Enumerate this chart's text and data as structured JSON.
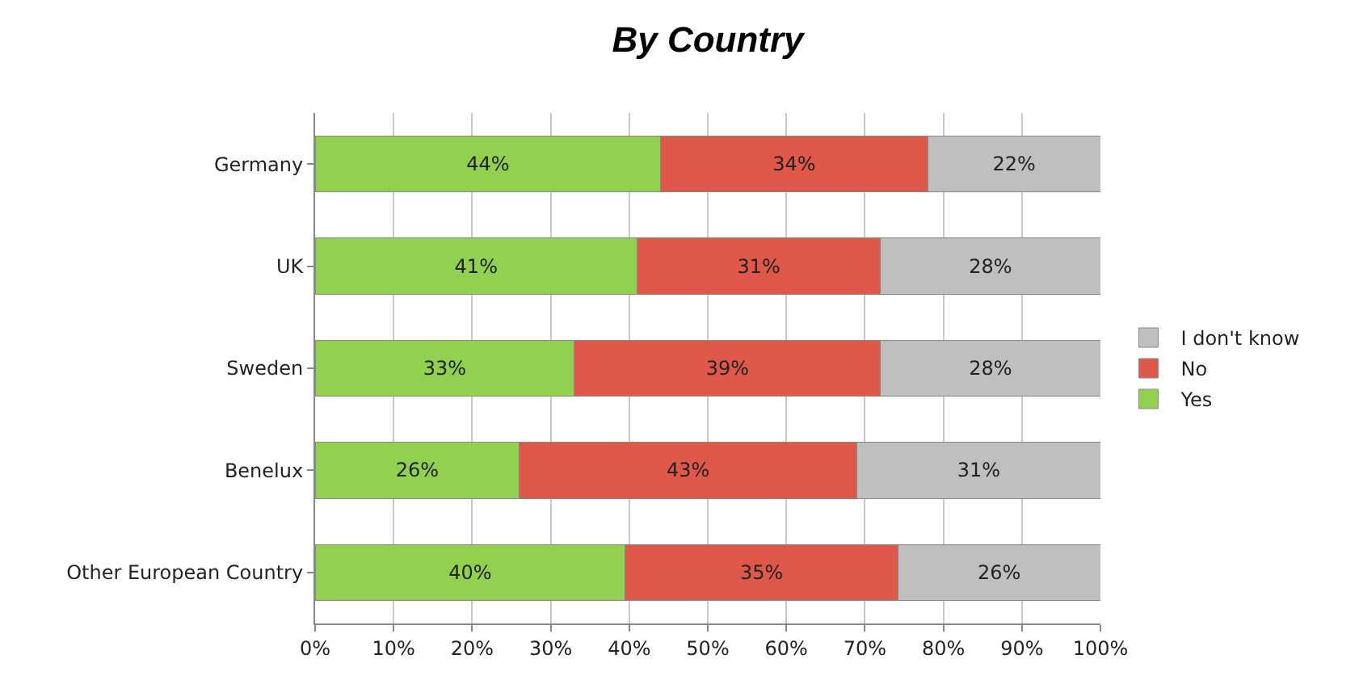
{
  "chart_data": {
    "type": "bar",
    "title": "By Country",
    "orientation": "horizontal",
    "stacked": true,
    "categories": [
      "Germany",
      "UK",
      "Sweden",
      "Benelux",
      "Other European Country"
    ],
    "series": [
      {
        "name": "Yes",
        "color": "#92d050",
        "values": [
          44,
          41,
          33,
          26,
          39.5
        ],
        "value_labels": [
          "44%",
          "41%",
          "33%",
          "26%",
          "40%"
        ]
      },
      {
        "name": "No",
        "color": "#e0584a",
        "values": [
          34,
          31,
          39,
          43,
          34.7
        ],
        "value_labels": [
          "34%",
          "31%",
          "39%",
          "43%",
          "35%"
        ]
      },
      {
        "name": "I don't know",
        "color": "#bfbfbf",
        "values": [
          22,
          28,
          28,
          31,
          25.8
        ],
        "value_labels": [
          "22%",
          "28%",
          "28%",
          "31%",
          "26%"
        ]
      }
    ],
    "xlim": [
      0,
      100
    ],
    "xticks": [
      {
        "value": 0,
        "label": "0%"
      },
      {
        "value": 10,
        "label": "10%"
      },
      {
        "value": 20,
        "label": "20%"
      },
      {
        "value": 30,
        "label": "30%"
      },
      {
        "value": 40,
        "label": "40%"
      },
      {
        "value": 50,
        "label": "50%"
      },
      {
        "value": 60,
        "label": "60%"
      },
      {
        "value": 70,
        "label": "70%"
      },
      {
        "value": 80,
        "label": "80%"
      },
      {
        "value": 90,
        "label": "90%"
      },
      {
        "value": 100,
        "label": "100%"
      }
    ],
    "grid": "x",
    "legend": "right"
  }
}
